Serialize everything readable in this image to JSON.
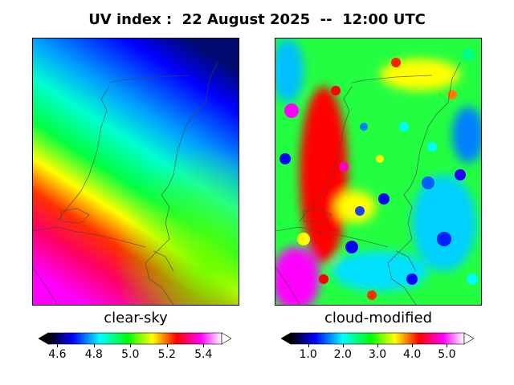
{
  "title": "UV index :  22 August 2025  --  12:00 UTC",
  "panels": {
    "left": {
      "label": "clear-sky",
      "colorbar": {
        "min": 4.55,
        "max": 5.5,
        "ticks": [
          "4.6",
          "4.8",
          "5.0",
          "5.2",
          "5.4"
        ],
        "tick_values": [
          4.6,
          4.8,
          5.0,
          5.2,
          5.4
        ]
      }
    },
    "right": {
      "label": "cloud-modified",
      "colorbar": {
        "min": 0.5,
        "max": 5.5,
        "ticks": [
          "1.0",
          "2.0",
          "3.0",
          "4.0",
          "5.0"
        ],
        "tick_values": [
          1.0,
          2.0,
          3.0,
          4.0,
          5.0
        ]
      }
    }
  },
  "colors": {
    "scale": [
      "#000000",
      "#0000ff",
      "#00ffff",
      "#00ff00",
      "#ffff00",
      "#ff0000",
      "#ff00ff",
      "#ffffff"
    ],
    "coastline": "#555555"
  }
}
